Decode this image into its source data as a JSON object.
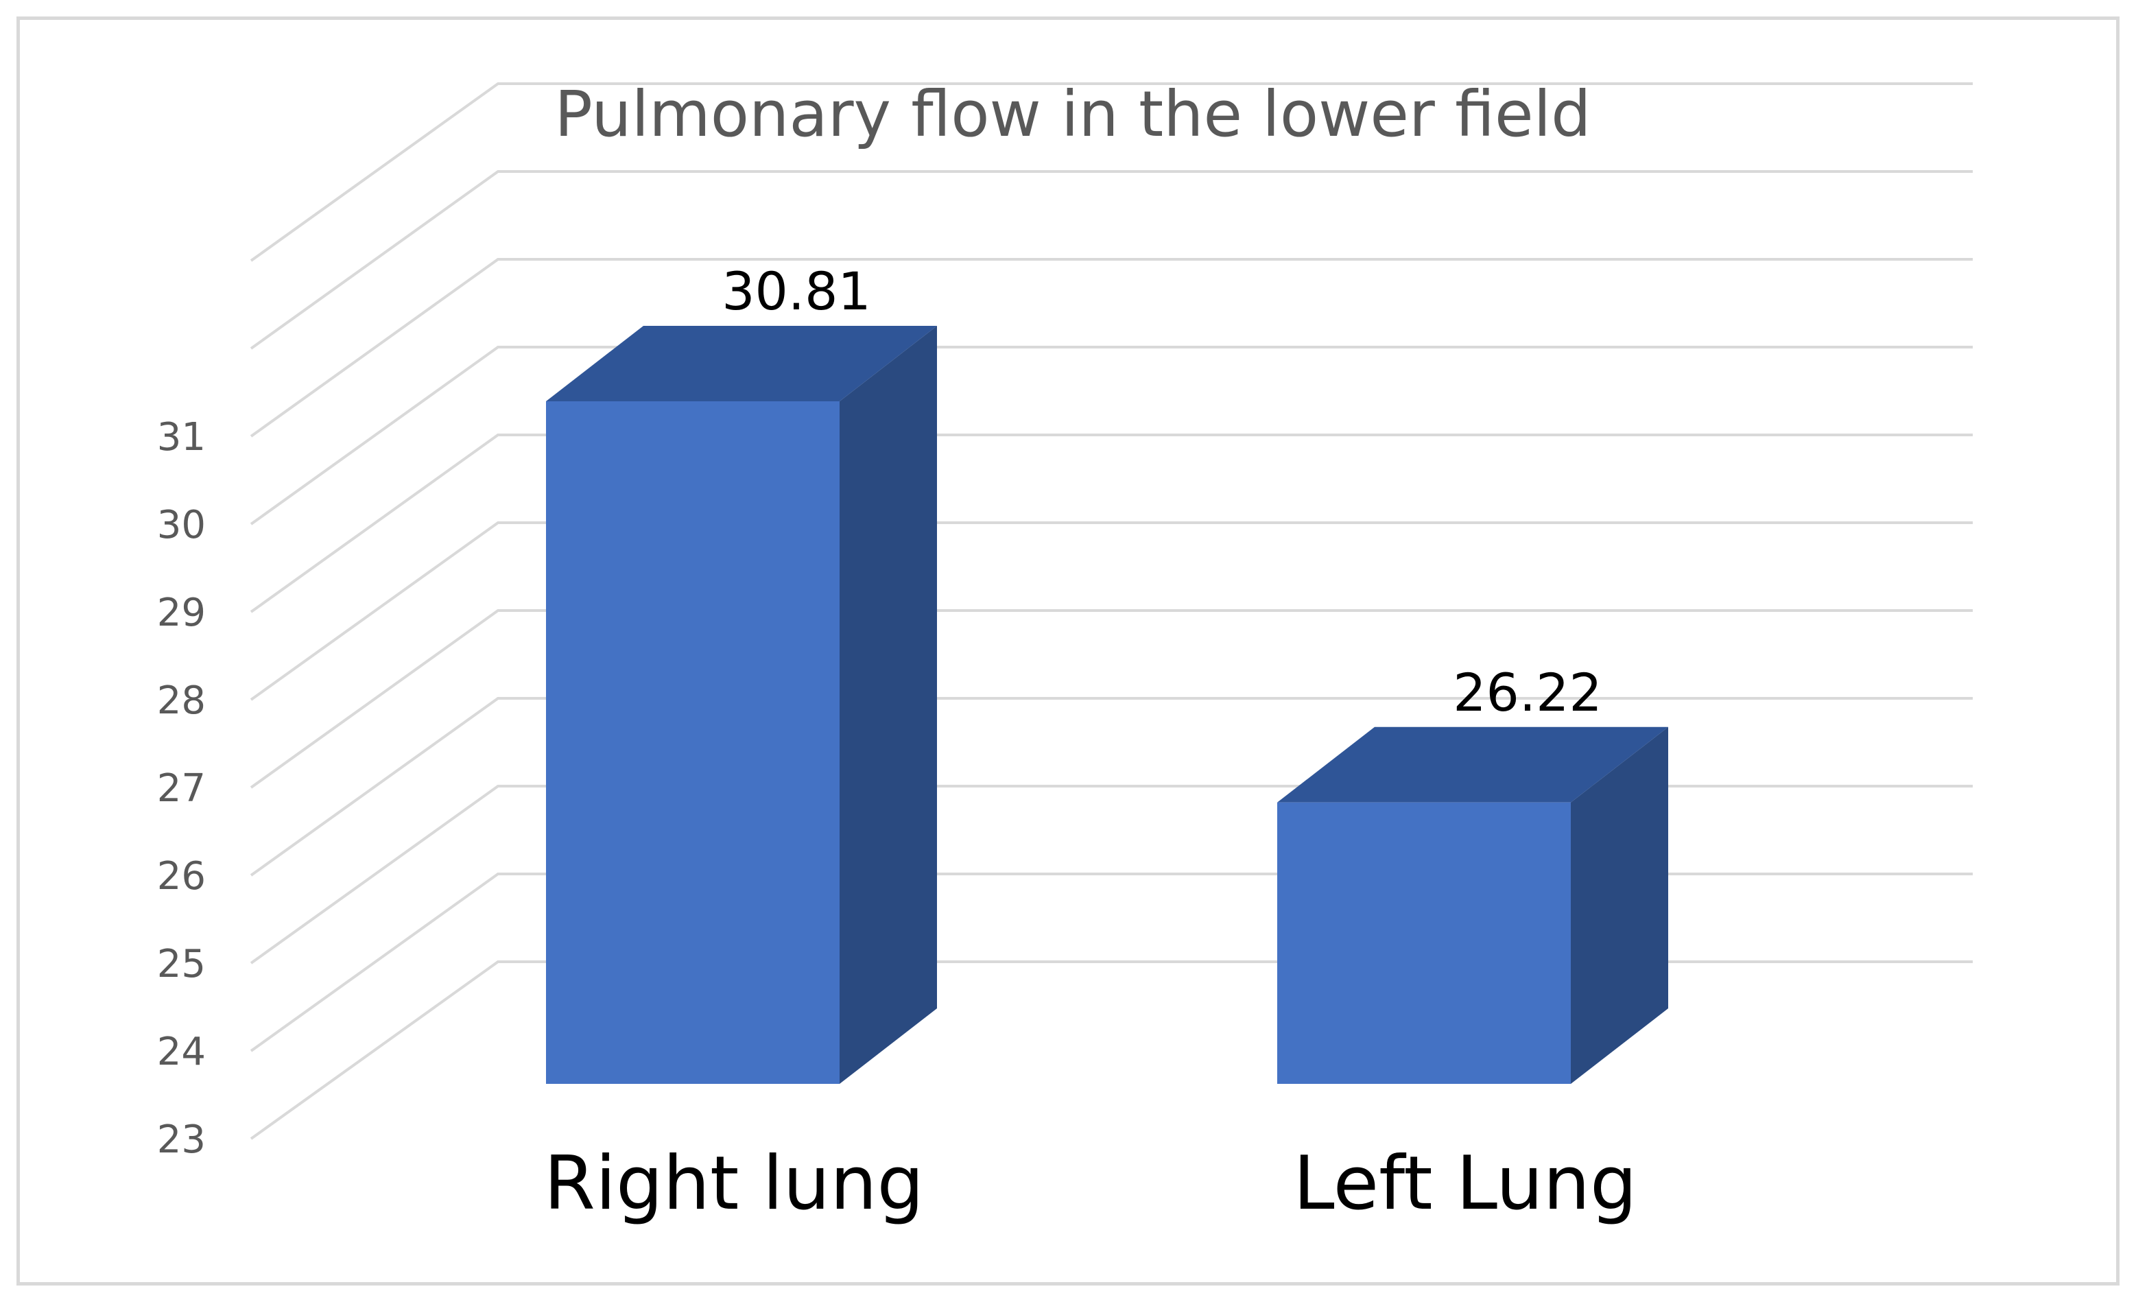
{
  "chart_data": {
    "type": "bar",
    "title": "Pulmonary flow in the lower field",
    "categories": [
      "Right lung",
      "Left Lung"
    ],
    "values": [
      30.81,
      26.22
    ],
    "data_labels": [
      "30.81",
      "26.22"
    ],
    "ylim": [
      23,
      31
    ],
    "yticks": [
      "23",
      "24",
      "25",
      "26",
      "27",
      "28",
      "29",
      "30",
      "31"
    ],
    "grid": true,
    "style": "3d-column",
    "colors": {
      "bar_front": "#4472c4",
      "bar_top": "#2f5597",
      "bar_side": "#2a4a80",
      "grid": "#d9d9d9",
      "text": "#595959"
    }
  }
}
